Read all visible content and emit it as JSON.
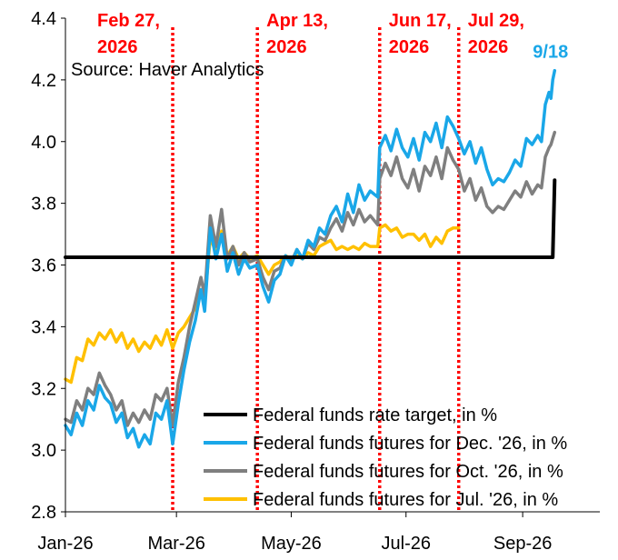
{
  "chart_data": {
    "type": "line",
    "title": "",
    "xlabel": "",
    "ylabel": "",
    "source_note": "Source: Haver Analytics",
    "x_range": [
      "2026-01-01",
      "2026-10-12"
    ],
    "ylim": [
      2.8,
      4.4
    ],
    "y_ticks": [
      "2.8",
      "3.0",
      "3.2",
      "3.4",
      "3.6",
      "3.8",
      "4.0",
      "4.2",
      "4.4"
    ],
    "x_ticks": [
      {
        "date": "2026-01-01",
        "label": "Jan-26"
      },
      {
        "date": "2026-03-01",
        "label": "Mar-26"
      },
      {
        "date": "2026-05-01",
        "label": "May-26"
      },
      {
        "date": "2026-07-01",
        "label": "Jul-26"
      },
      {
        "date": "2026-09-01",
        "label": "Sep-26"
      }
    ],
    "grid": false,
    "legend_position": "bottom-right",
    "event_lines": [
      {
        "date": "2026-02-27",
        "line1": "Feb 27,",
        "line2": "2026",
        "color": "#ff0000"
      },
      {
        "date": "2026-04-13",
        "line1": "Apr 13,",
        "line2": "2026",
        "color": "#ff0000"
      },
      {
        "date": "2026-06-17",
        "line1": "Jun 17,",
        "line2": "2026",
        "color": "#ff0000"
      },
      {
        "date": "2026-07-29",
        "line1": "Jul 29,",
        "line2": "2026",
        "color": "#ff0000"
      }
    ],
    "end_annotation": {
      "text": "9/18",
      "date": "2026-09-18",
      "value": 4.23,
      "color": "#1aa7e8"
    },
    "series": [
      {
        "name": "Federal funds rate target, in %",
        "color": "#000000",
        "points": [
          [
            "2026-01-01",
            3.625
          ],
          [
            "2026-09-17",
            3.625
          ],
          [
            "2026-09-18",
            3.875
          ]
        ]
      },
      {
        "name": "Federal funds futures for Dec. '26, in %",
        "color": "#1aa7e8",
        "points": [
          [
            "2026-01-01",
            3.08
          ],
          [
            "2026-01-04",
            3.05
          ],
          [
            "2026-01-07",
            3.12
          ],
          [
            "2026-01-10",
            3.08
          ],
          [
            "2026-01-13",
            3.16
          ],
          [
            "2026-01-16",
            3.13
          ],
          [
            "2026-01-19",
            3.21
          ],
          [
            "2026-01-22",
            3.17
          ],
          [
            "2026-01-25",
            3.15
          ],
          [
            "2026-01-28",
            3.09
          ],
          [
            "2026-01-31",
            3.12
          ],
          [
            "2026-02-03",
            3.04
          ],
          [
            "2026-02-06",
            3.07
          ],
          [
            "2026-02-09",
            3.01
          ],
          [
            "2026-02-12",
            3.05
          ],
          [
            "2026-02-15",
            3.02
          ],
          [
            "2026-02-18",
            3.12
          ],
          [
            "2026-02-21",
            3.1
          ],
          [
            "2026-02-24",
            3.16
          ],
          [
            "2026-02-27",
            3.02
          ],
          [
            "2026-03-02",
            3.15
          ],
          [
            "2026-03-05",
            3.26
          ],
          [
            "2026-03-08",
            3.35
          ],
          [
            "2026-03-11",
            3.42
          ],
          [
            "2026-03-14",
            3.52
          ],
          [
            "2026-03-16",
            3.45
          ],
          [
            "2026-03-19",
            3.72
          ],
          [
            "2026-03-22",
            3.62
          ],
          [
            "2026-03-25",
            3.7
          ],
          [
            "2026-03-28",
            3.58
          ],
          [
            "2026-03-31",
            3.64
          ],
          [
            "2026-04-03",
            3.57
          ],
          [
            "2026-04-06",
            3.62
          ],
          [
            "2026-04-09",
            3.59
          ],
          [
            "2026-04-13",
            3.6
          ],
          [
            "2026-04-16",
            3.53
          ],
          [
            "2026-04-19",
            3.48
          ],
          [
            "2026-04-22",
            3.55
          ],
          [
            "2026-04-25",
            3.57
          ],
          [
            "2026-04-28",
            3.63
          ],
          [
            "2026-05-01",
            3.6
          ],
          [
            "2026-05-04",
            3.65
          ],
          [
            "2026-05-07",
            3.62
          ],
          [
            "2026-05-10",
            3.68
          ],
          [
            "2026-05-13",
            3.66
          ],
          [
            "2026-05-16",
            3.72
          ],
          [
            "2026-05-19",
            3.7
          ],
          [
            "2026-05-22",
            3.76
          ],
          [
            "2026-05-25",
            3.79
          ],
          [
            "2026-05-28",
            3.74
          ],
          [
            "2026-05-31",
            3.83
          ],
          [
            "2026-06-03",
            3.77
          ],
          [
            "2026-06-06",
            3.86
          ],
          [
            "2026-06-09",
            3.81
          ],
          [
            "2026-06-12",
            3.84
          ],
          [
            "2026-06-16",
            3.82
          ],
          [
            "2026-06-17",
            3.98
          ],
          [
            "2026-06-20",
            4.02
          ],
          [
            "2026-06-23",
            3.97
          ],
          [
            "2026-06-26",
            4.04
          ],
          [
            "2026-06-29",
            3.98
          ],
          [
            "2026-07-02",
            3.95
          ],
          [
            "2026-07-05",
            4.01
          ],
          [
            "2026-07-08",
            3.94
          ],
          [
            "2026-07-11",
            4.03
          ],
          [
            "2026-07-14",
            4.0
          ],
          [
            "2026-07-17",
            4.06
          ],
          [
            "2026-07-20",
            3.98
          ],
          [
            "2026-07-23",
            4.08
          ],
          [
            "2026-07-26",
            4.05
          ],
          [
            "2026-07-29",
            4.01
          ],
          [
            "2026-08-01",
            3.96
          ],
          [
            "2026-08-04",
            4.0
          ],
          [
            "2026-08-07",
            3.93
          ],
          [
            "2026-08-10",
            3.98
          ],
          [
            "2026-08-13",
            3.91
          ],
          [
            "2026-08-16",
            3.86
          ],
          [
            "2026-08-19",
            3.88
          ],
          [
            "2026-08-22",
            3.87
          ],
          [
            "2026-08-25",
            3.9
          ],
          [
            "2026-08-28",
            3.94
          ],
          [
            "2026-08-31",
            3.92
          ],
          [
            "2026-09-03",
            4.01
          ],
          [
            "2026-09-06",
            3.99
          ],
          [
            "2026-09-09",
            4.02
          ],
          [
            "2026-09-11",
            4.0
          ],
          [
            "2026-09-13",
            4.12
          ],
          [
            "2026-09-15",
            4.16
          ],
          [
            "2026-09-16",
            4.14
          ],
          [
            "2026-09-17",
            4.2
          ],
          [
            "2026-09-18",
            4.23
          ]
        ]
      },
      {
        "name": "Federal funds futures for Oct. '26, in %",
        "color": "#7f7f7f",
        "points": [
          [
            "2026-01-01",
            3.1
          ],
          [
            "2026-01-04",
            3.09
          ],
          [
            "2026-01-07",
            3.16
          ],
          [
            "2026-01-10",
            3.13
          ],
          [
            "2026-01-13",
            3.2
          ],
          [
            "2026-01-16",
            3.18
          ],
          [
            "2026-01-19",
            3.25
          ],
          [
            "2026-01-22",
            3.21
          ],
          [
            "2026-01-25",
            3.18
          ],
          [
            "2026-01-28",
            3.13
          ],
          [
            "2026-01-31",
            3.16
          ],
          [
            "2026-02-03",
            3.08
          ],
          [
            "2026-02-06",
            3.12
          ],
          [
            "2026-02-09",
            3.09
          ],
          [
            "2026-02-12",
            3.13
          ],
          [
            "2026-02-15",
            3.1
          ],
          [
            "2026-02-18",
            3.18
          ],
          [
            "2026-02-21",
            3.16
          ],
          [
            "2026-02-24",
            3.2
          ],
          [
            "2026-02-27",
            3.08
          ],
          [
            "2026-03-02",
            3.22
          ],
          [
            "2026-03-05",
            3.3
          ],
          [
            "2026-03-08",
            3.4
          ],
          [
            "2026-03-11",
            3.48
          ],
          [
            "2026-03-14",
            3.56
          ],
          [
            "2026-03-16",
            3.5
          ],
          [
            "2026-03-19",
            3.76
          ],
          [
            "2026-03-22",
            3.66
          ],
          [
            "2026-03-25",
            3.78
          ],
          [
            "2026-03-28",
            3.62
          ],
          [
            "2026-03-31",
            3.66
          ],
          [
            "2026-04-03",
            3.6
          ],
          [
            "2026-04-06",
            3.64
          ],
          [
            "2026-04-09",
            3.61
          ],
          [
            "2026-04-13",
            3.62
          ],
          [
            "2026-04-16",
            3.56
          ],
          [
            "2026-04-19",
            3.52
          ],
          [
            "2026-04-22",
            3.58
          ],
          [
            "2026-04-25",
            3.59
          ],
          [
            "2026-04-28",
            3.63
          ],
          [
            "2026-05-01",
            3.61
          ],
          [
            "2026-05-04",
            3.65
          ],
          [
            "2026-05-07",
            3.62
          ],
          [
            "2026-05-10",
            3.67
          ],
          [
            "2026-05-13",
            3.65
          ],
          [
            "2026-05-16",
            3.69
          ],
          [
            "2026-05-19",
            3.68
          ],
          [
            "2026-05-22",
            3.72
          ],
          [
            "2026-05-25",
            3.75
          ],
          [
            "2026-05-28",
            3.71
          ],
          [
            "2026-05-31",
            3.77
          ],
          [
            "2026-06-03",
            3.73
          ],
          [
            "2026-06-06",
            3.78
          ],
          [
            "2026-06-09",
            3.74
          ],
          [
            "2026-06-12",
            3.76
          ],
          [
            "2026-06-16",
            3.73
          ],
          [
            "2026-06-17",
            3.88
          ],
          [
            "2026-06-20",
            3.93
          ],
          [
            "2026-06-23",
            3.89
          ],
          [
            "2026-06-26",
            3.95
          ],
          [
            "2026-06-29",
            3.88
          ],
          [
            "2026-07-02",
            3.85
          ],
          [
            "2026-07-05",
            3.91
          ],
          [
            "2026-07-08",
            3.84
          ],
          [
            "2026-07-11",
            3.92
          ],
          [
            "2026-07-14",
            3.89
          ],
          [
            "2026-07-17",
            3.95
          ],
          [
            "2026-07-20",
            3.88
          ],
          [
            "2026-07-23",
            3.98
          ],
          [
            "2026-07-26",
            3.94
          ],
          [
            "2026-07-29",
            3.91
          ],
          [
            "2026-08-01",
            3.84
          ],
          [
            "2026-08-04",
            3.88
          ],
          [
            "2026-08-07",
            3.81
          ],
          [
            "2026-08-10",
            3.85
          ],
          [
            "2026-08-13",
            3.79
          ],
          [
            "2026-08-16",
            3.77
          ],
          [
            "2026-08-19",
            3.79
          ],
          [
            "2026-08-22",
            3.78
          ],
          [
            "2026-08-25",
            3.81
          ],
          [
            "2026-08-28",
            3.84
          ],
          [
            "2026-08-31",
            3.82
          ],
          [
            "2026-09-03",
            3.87
          ],
          [
            "2026-09-06",
            3.83
          ],
          [
            "2026-09-09",
            3.86
          ],
          [
            "2026-09-11",
            3.85
          ],
          [
            "2026-09-13",
            3.95
          ],
          [
            "2026-09-15",
            3.98
          ],
          [
            "2026-09-16",
            3.99
          ],
          [
            "2026-09-17",
            4.01
          ],
          [
            "2026-09-18",
            4.03
          ]
        ]
      },
      {
        "name": "Federal funds futures for Jul. '26, in %",
        "color": "#ffc000",
        "points": [
          [
            "2026-01-01",
            3.23
          ],
          [
            "2026-01-04",
            3.22
          ],
          [
            "2026-01-07",
            3.3
          ],
          [
            "2026-01-10",
            3.29
          ],
          [
            "2026-01-13",
            3.36
          ],
          [
            "2026-01-16",
            3.34
          ],
          [
            "2026-01-19",
            3.38
          ],
          [
            "2026-01-22",
            3.36
          ],
          [
            "2026-01-25",
            3.39
          ],
          [
            "2026-01-28",
            3.35
          ],
          [
            "2026-01-31",
            3.38
          ],
          [
            "2026-02-03",
            3.33
          ],
          [
            "2026-02-06",
            3.36
          ],
          [
            "2026-02-09",
            3.32
          ],
          [
            "2026-02-12",
            3.35
          ],
          [
            "2026-02-15",
            3.33
          ],
          [
            "2026-02-18",
            3.37
          ],
          [
            "2026-02-21",
            3.34
          ],
          [
            "2026-02-24",
            3.39
          ],
          [
            "2026-02-27",
            3.33
          ],
          [
            "2026-03-02",
            3.38
          ],
          [
            "2026-03-05",
            3.4
          ],
          [
            "2026-03-08",
            3.43
          ],
          [
            "2026-03-11",
            3.46
          ],
          [
            "2026-03-14",
            3.52
          ],
          [
            "2026-03-16",
            3.48
          ],
          [
            "2026-03-19",
            3.69
          ],
          [
            "2026-03-22",
            3.64
          ],
          [
            "2026-03-25",
            3.71
          ],
          [
            "2026-03-28",
            3.63
          ],
          [
            "2026-03-31",
            3.66
          ],
          [
            "2026-04-03",
            3.62
          ],
          [
            "2026-04-06",
            3.64
          ],
          [
            "2026-04-09",
            3.62
          ],
          [
            "2026-04-13",
            3.63
          ],
          [
            "2026-04-16",
            3.6
          ],
          [
            "2026-04-19",
            3.57
          ],
          [
            "2026-04-22",
            3.6
          ],
          [
            "2026-04-25",
            3.61
          ],
          [
            "2026-04-28",
            3.63
          ],
          [
            "2026-05-01",
            3.62
          ],
          [
            "2026-05-04",
            3.63
          ],
          [
            "2026-05-07",
            3.62
          ],
          [
            "2026-05-10",
            3.64
          ],
          [
            "2026-05-13",
            3.63
          ],
          [
            "2026-05-16",
            3.66
          ],
          [
            "2026-05-19",
            3.67
          ],
          [
            "2026-05-22",
            3.68
          ],
          [
            "2026-05-25",
            3.65
          ],
          [
            "2026-05-28",
            3.66
          ],
          [
            "2026-05-31",
            3.65
          ],
          [
            "2026-06-03",
            3.66
          ],
          [
            "2026-06-06",
            3.65
          ],
          [
            "2026-06-09",
            3.67
          ],
          [
            "2026-06-12",
            3.66
          ],
          [
            "2026-06-16",
            3.66
          ],
          [
            "2026-06-17",
            3.72
          ],
          [
            "2026-06-20",
            3.73
          ],
          [
            "2026-06-23",
            3.71
          ],
          [
            "2026-06-26",
            3.72
          ],
          [
            "2026-06-29",
            3.69
          ],
          [
            "2026-07-02",
            3.7
          ],
          [
            "2026-07-05",
            3.7
          ],
          [
            "2026-07-08",
            3.68
          ],
          [
            "2026-07-11",
            3.7
          ],
          [
            "2026-07-14",
            3.66
          ],
          [
            "2026-07-17",
            3.69
          ],
          [
            "2026-07-20",
            3.67
          ],
          [
            "2026-07-23",
            3.71
          ],
          [
            "2026-07-26",
            3.72
          ],
          [
            "2026-07-29",
            3.72
          ]
        ]
      }
    ]
  }
}
